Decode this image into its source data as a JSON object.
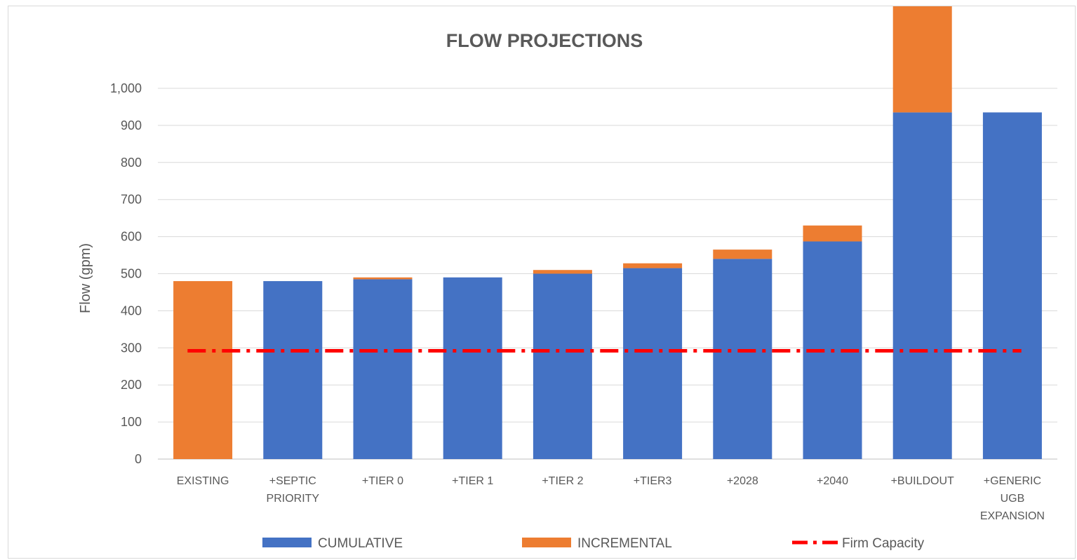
{
  "chart_data": {
    "type": "bar",
    "title": "FLOW PROJECTIONS",
    "xlabel": "",
    "ylabel": "Flow (gpm)",
    "ylim": [
      0,
      1000
    ],
    "yticks": [
      "0",
      "100",
      "200",
      "300",
      "400",
      "500",
      "600",
      "700",
      "800",
      "900",
      "1,000"
    ],
    "ytick_values": [
      0,
      100,
      200,
      300,
      400,
      500,
      600,
      700,
      800,
      900,
      1000
    ],
    "grid": "horizontal",
    "legend_position": "bottom",
    "categories": [
      [
        "EXISTING"
      ],
      [
        "+SEPTIC",
        "PRIORITY"
      ],
      [
        "+TIER 0"
      ],
      [
        "+TIER 1"
      ],
      [
        "+TIER 2"
      ],
      [
        "+TIER3"
      ],
      [
        "+2028"
      ],
      [
        "+2040"
      ],
      [
        "+BUILDOUT"
      ],
      [
        "+GENERIC",
        "UGB",
        "EXPANSION"
      ]
    ],
    "series": [
      {
        "name": "CUMULATIVE",
        "color": "#4472c4",
        "values": [
          0,
          480,
          485,
          490,
          500,
          515,
          540,
          587,
          935,
          935
        ]
      },
      {
        "name": "INCREMENTAL",
        "color": "#ed7d31",
        "values": [
          480,
          0,
          5,
          0,
          10,
          13,
          25,
          43,
          348,
          0
        ]
      }
    ],
    "reference_line": {
      "name": "Firm Capacity",
      "color": "#ff0000",
      "value": 292,
      "style": "dash-dot"
    }
  }
}
